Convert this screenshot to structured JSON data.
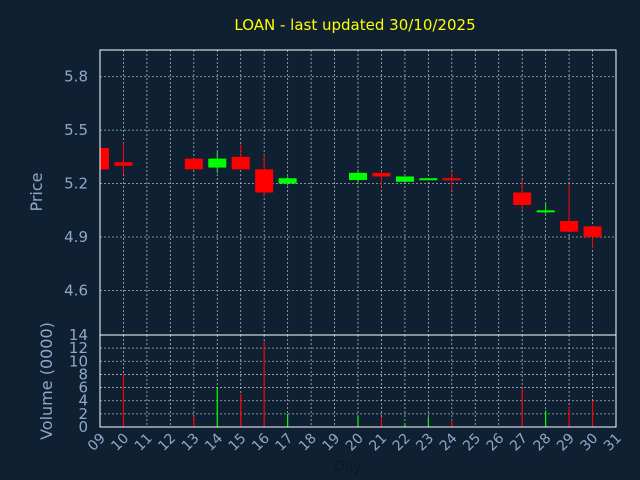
{
  "chart_data": [
    {
      "type": "candlestick",
      "title": "LOAN - last updated 30/10/2025",
      "ylabel": "Price",
      "ylim": [
        4.35,
        5.95
      ],
      "yticks": [
        "4.6",
        "4.9",
        "5.2",
        "5.5",
        "5.8"
      ],
      "grid": true,
      "up_color": "#00ff00",
      "down_color": "#ff0000",
      "x_labels": [
        "09",
        "10",
        "11",
        "12",
        "13",
        "14",
        "15",
        "16",
        "17",
        "18",
        "19",
        "20",
        "21",
        "22",
        "23",
        "24",
        "25",
        "26",
        "27",
        "28",
        "29",
        "30",
        "31"
      ],
      "candles": [
        {
          "day": 9,
          "open": 5.4,
          "high": 5.4,
          "low": 5.28,
          "close": 5.28
        },
        {
          "day": 10,
          "open": 5.32,
          "high": 5.43,
          "low": 5.25,
          "close": 5.3
        },
        {
          "day": 13,
          "open": 5.34,
          "high": 5.34,
          "low": 5.28,
          "close": 5.28
        },
        {
          "day": 14,
          "open": 5.29,
          "high": 5.38,
          "low": 5.26,
          "close": 5.34
        },
        {
          "day": 15,
          "open": 5.35,
          "high": 5.42,
          "low": 5.28,
          "close": 5.28
        },
        {
          "day": 16,
          "open": 5.28,
          "high": 5.36,
          "low": 5.13,
          "close": 5.15
        },
        {
          "day": 17,
          "open": 5.2,
          "high": 5.24,
          "low": 5.19,
          "close": 5.23
        },
        {
          "day": 20,
          "open": 5.22,
          "high": 5.28,
          "low": 5.2,
          "close": 5.26
        },
        {
          "day": 21,
          "open": 5.26,
          "high": 5.27,
          "low": 5.18,
          "close": 5.24
        },
        {
          "day": 22,
          "open": 5.21,
          "high": 5.24,
          "low": 5.21,
          "close": 5.24
        },
        {
          "day": 23,
          "open": 5.22,
          "high": 5.23,
          "low": 5.22,
          "close": 5.23
        },
        {
          "day": 24,
          "open": 5.23,
          "high": 5.27,
          "low": 5.16,
          "close": 5.22
        },
        {
          "day": 27,
          "open": 5.15,
          "high": 5.22,
          "low": 5.05,
          "close": 5.08
        },
        {
          "day": 28,
          "open": 5.04,
          "high": 5.09,
          "low": 5.03,
          "close": 5.05
        },
        {
          "day": 29,
          "open": 4.99,
          "high": 5.2,
          "low": 4.93,
          "close": 4.93
        },
        {
          "day": 30,
          "open": 4.96,
          "high": 4.96,
          "low": 4.84,
          "close": 4.9
        }
      ]
    },
    {
      "type": "bar",
      "xlabel": "Day",
      "ylabel": "Volume (0000)",
      "ylim": [
        0,
        14
      ],
      "yticks": [
        "0",
        "2",
        "4",
        "6",
        "8",
        "10",
        "12",
        "14"
      ],
      "grid": true,
      "bars": [
        {
          "day": 10,
          "value": 8,
          "color": "#ff0000"
        },
        {
          "day": 13,
          "value": 1.6,
          "color": "#ff0000"
        },
        {
          "day": 14,
          "value": 6,
          "color": "#00ff00"
        },
        {
          "day": 15,
          "value": 5,
          "color": "#ff0000"
        },
        {
          "day": 16,
          "value": 13,
          "color": "#ff0000"
        },
        {
          "day": 17,
          "value": 2,
          "color": "#00ff00"
        },
        {
          "day": 20,
          "value": 1.6,
          "color": "#00ff00"
        },
        {
          "day": 21,
          "value": 1.5,
          "color": "#ff0000"
        },
        {
          "day": 22,
          "value": 0.5,
          "color": "#00ff00"
        },
        {
          "day": 23,
          "value": 1.5,
          "color": "#00ff00"
        },
        {
          "day": 24,
          "value": 1.0,
          "color": "#ff0000"
        },
        {
          "day": 27,
          "value": 6,
          "color": "#ff0000"
        },
        {
          "day": 28,
          "value": 2.5,
          "color": "#00ff00"
        },
        {
          "day": 29,
          "value": 3,
          "color": "#ff0000"
        },
        {
          "day": 30,
          "value": 4,
          "color": "#ff0000"
        }
      ]
    }
  ]
}
